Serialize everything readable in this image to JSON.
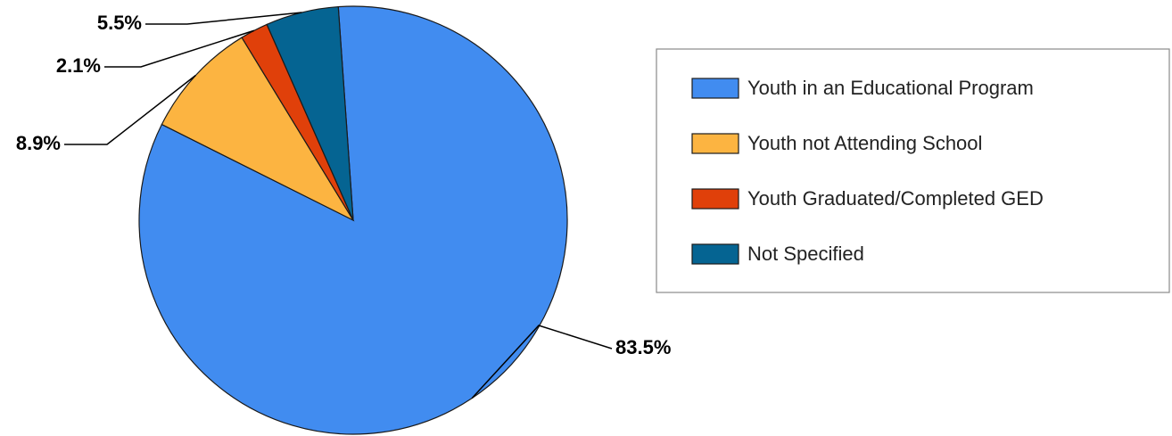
{
  "chart_data": {
    "type": "pie",
    "title": "",
    "slices": [
      {
        "label": "Youth in an Educational Program",
        "value": 83.5,
        "value_label": "83.5%",
        "color": "#418CF0"
      },
      {
        "label": "Youth not Attending School",
        "value": 8.9,
        "value_label": "8.9%",
        "color": "#FCB441"
      },
      {
        "label": "Youth Graduated/Completed GED",
        "value": 2.1,
        "value_label": "2.1%",
        "color": "#E0400A"
      },
      {
        "label": "Not Specified",
        "value": 5.5,
        "value_label": "5.5%",
        "color": "#056492"
      }
    ],
    "legend": {
      "placement": "right",
      "entries": [
        "Youth in an Educational Program",
        "Youth not Attending School",
        "Youth Graduated/Completed GED",
        "Not Specified"
      ]
    }
  }
}
